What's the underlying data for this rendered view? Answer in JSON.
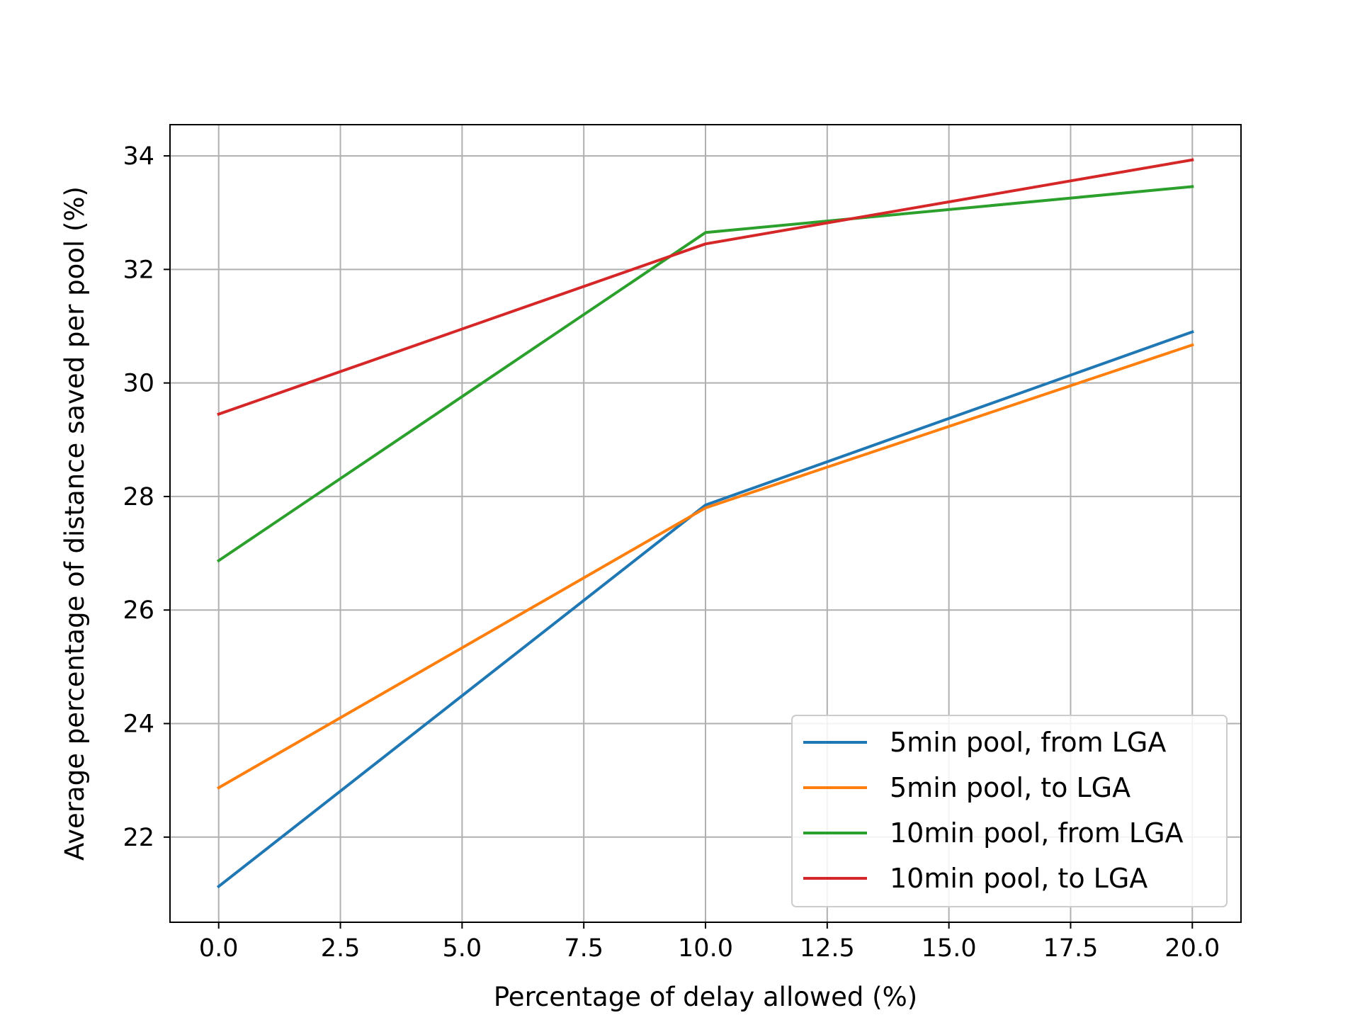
{
  "chart_data": {
    "type": "line",
    "title": "",
    "xlabel": "Percentage of delay allowed (%)",
    "ylabel": "Average percentage of distance saved per pool (%)",
    "xlim": [
      -1.0,
      21.0
    ],
    "ylim": [
      20.5,
      34.55
    ],
    "xticks": [
      0.0,
      2.5,
      5.0,
      7.5,
      10.0,
      12.5,
      15.0,
      17.5,
      20.0
    ],
    "xtick_labels": [
      "0.0",
      "2.5",
      "5.0",
      "7.5",
      "10.0",
      "12.5",
      "15.0",
      "17.5",
      "20.0"
    ],
    "yticks": [
      22,
      24,
      26,
      28,
      30,
      32,
      34
    ],
    "ytick_labels": [
      "22",
      "24",
      "26",
      "28",
      "30",
      "32",
      "34"
    ],
    "grid": true,
    "legend_position": "lower-right",
    "x": [
      0,
      10,
      20
    ],
    "series": [
      {
        "name": "5min pool, from LGA",
        "color": "#1f77b4",
        "values": [
          21.13,
          27.85,
          30.9
        ]
      },
      {
        "name": "5min pool, to LGA",
        "color": "#ff7f0e",
        "values": [
          22.87,
          27.8,
          30.67
        ]
      },
      {
        "name": "10min pool, from LGA",
        "color": "#2ca02c",
        "values": [
          26.87,
          32.65,
          33.46
        ]
      },
      {
        "name": "10min pool, to LGA",
        "color": "#d62728",
        "values": [
          29.45,
          32.45,
          33.93
        ]
      }
    ]
  }
}
